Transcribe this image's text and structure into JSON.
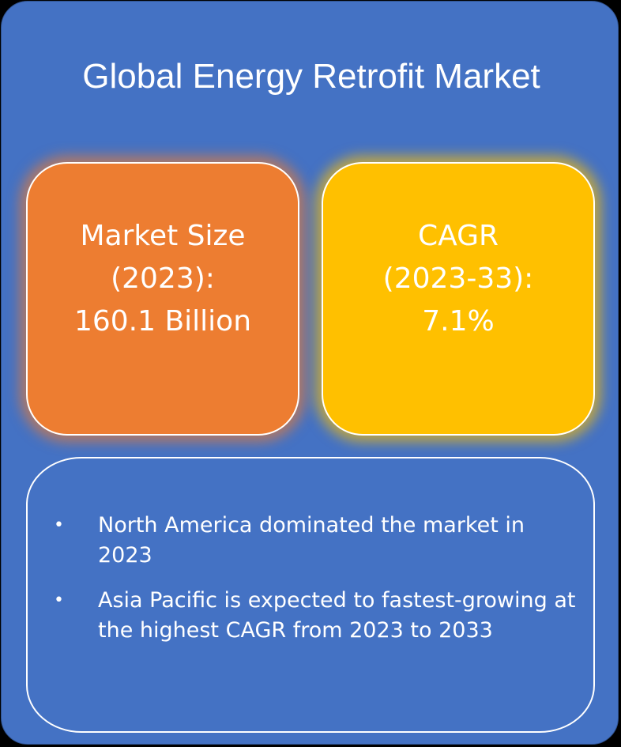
{
  "title": "Global Energy Retrofit Market",
  "market_size": {
    "lines": [
      "Market Size",
      "(2023):",
      "160.1 Billion"
    ]
  },
  "cagr": {
    "lines": [
      "CAGR",
      "(2023-33):",
      "7.1%"
    ]
  },
  "highlights": [
    "North America dominated the market in 2023",
    "Asia Pacific is expected to fastest-growing at the highest CAGR from 2023 to 2033"
  ],
  "colors": {
    "background": "#4472C4",
    "market_size_box": "#ED7D31",
    "cagr_box": "#FFC000",
    "text": "#FFFFFF"
  }
}
